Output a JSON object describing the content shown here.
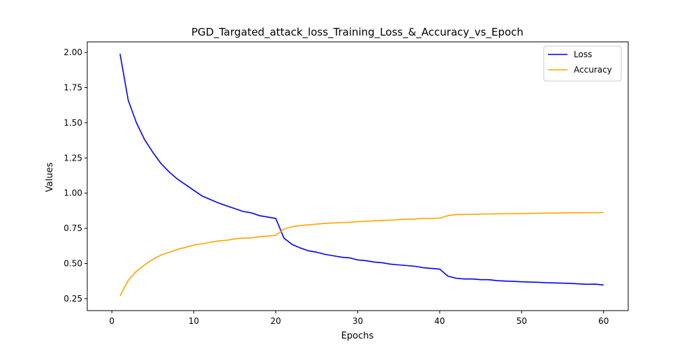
{
  "chart_data": {
    "type": "line",
    "title": "PGD_Targated_attack_loss_Training_Loss_&_Accuracy_vs_Epoch",
    "xlabel": "Epochs",
    "ylabel": "Values",
    "xlim": [
      -3,
      63
    ],
    "ylim": [
      0.165,
      2.075
    ],
    "xticks": [
      0,
      10,
      20,
      30,
      40,
      50,
      60
    ],
    "yticks": [
      0.25,
      0.5,
      0.75,
      1.0,
      1.25,
      1.5,
      1.75,
      2.0
    ],
    "ytick_labels": [
      "0.25",
      "0.50",
      "0.75",
      "1.00",
      "1.25",
      "1.50",
      "1.75",
      "2.00"
    ],
    "grid": false,
    "legend_position": "top-right",
    "x": [
      1,
      2,
      3,
      4,
      5,
      6,
      7,
      8,
      9,
      10,
      11,
      12,
      13,
      14,
      15,
      16,
      17,
      18,
      19,
      20,
      21,
      22,
      23,
      24,
      25,
      26,
      27,
      28,
      29,
      30,
      31,
      32,
      33,
      34,
      35,
      36,
      37,
      38,
      39,
      40,
      41,
      42,
      43,
      44,
      45,
      46,
      47,
      48,
      49,
      50,
      51,
      52,
      53,
      54,
      55,
      56,
      57,
      58,
      59,
      60
    ],
    "series": [
      {
        "name": "Loss",
        "color": "#0000ff",
        "values": [
          1.99,
          1.66,
          1.5,
          1.38,
          1.29,
          1.21,
          1.15,
          1.1,
          1.06,
          1.02,
          0.98,
          0.955,
          0.93,
          0.91,
          0.89,
          0.87,
          0.86,
          0.84,
          0.83,
          0.82,
          0.68,
          0.635,
          0.61,
          0.59,
          0.58,
          0.565,
          0.555,
          0.545,
          0.54,
          0.525,
          0.52,
          0.51,
          0.505,
          0.495,
          0.49,
          0.485,
          0.48,
          0.47,
          0.465,
          0.46,
          0.41,
          0.395,
          0.39,
          0.39,
          0.385,
          0.385,
          0.378,
          0.375,
          0.373,
          0.37,
          0.368,
          0.366,
          0.363,
          0.362,
          0.36,
          0.358,
          0.355,
          0.352,
          0.353,
          0.347
        ]
      },
      {
        "name": "Accuracy",
        "color": "#ffa500",
        "values": [
          0.27,
          0.38,
          0.445,
          0.49,
          0.53,
          0.56,
          0.58,
          0.6,
          0.615,
          0.63,
          0.64,
          0.65,
          0.66,
          0.665,
          0.675,
          0.68,
          0.682,
          0.69,
          0.695,
          0.7,
          0.745,
          0.762,
          0.77,
          0.775,
          0.78,
          0.785,
          0.788,
          0.79,
          0.793,
          0.797,
          0.8,
          0.803,
          0.806,
          0.808,
          0.812,
          0.814,
          0.816,
          0.82,
          0.82,
          0.822,
          0.84,
          0.848,
          0.848,
          0.849,
          0.851,
          0.852,
          0.853,
          0.854,
          0.855,
          0.855,
          0.856,
          0.857,
          0.858,
          0.858,
          0.859,
          0.86,
          0.86,
          0.861,
          0.861,
          0.862
        ]
      }
    ]
  }
}
